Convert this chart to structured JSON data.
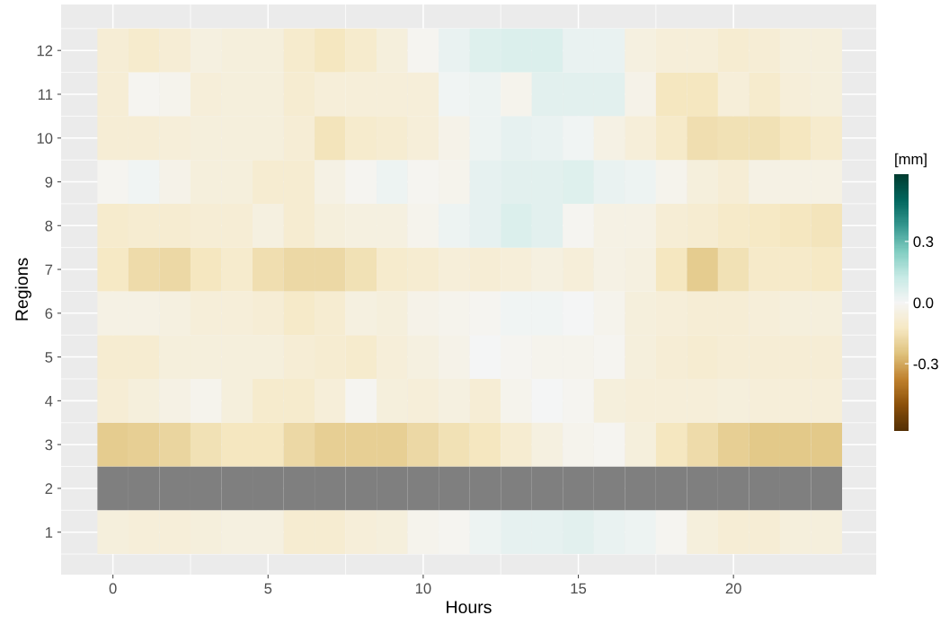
{
  "chart_data": {
    "type": "heatmap",
    "xlabel": "Hours",
    "ylabel": "Regions",
    "clabel": "[mm]",
    "categories": [
      "0",
      null,
      null,
      null,
      null,
      "5",
      null,
      null,
      null,
      null,
      "10",
      null,
      null,
      null,
      null,
      "15",
      null,
      null,
      null,
      null,
      "20",
      null,
      null,
      null
    ],
    "y_categories": [
      "12",
      "11",
      "10",
      "9",
      "8",
      "7",
      "6",
      "5",
      "4",
      "3",
      "2",
      "1"
    ],
    "cells": [
      [
        -0.08,
        -0.1,
        -0.08,
        -0.05,
        -0.06,
        -0.06,
        -0.1,
        -0.13,
        -0.1,
        -0.06,
        -0.01,
        0.03,
        0.06,
        0.07,
        0.07,
        0.03,
        0.03,
        -0.05,
        -0.07,
        -0.07,
        -0.09,
        -0.08,
        -0.06,
        -0.06
      ],
      [
        -0.08,
        -0.01,
        -0.02,
        -0.07,
        -0.06,
        -0.06,
        -0.09,
        -0.07,
        -0.07,
        -0.07,
        -0.07,
        0.01,
        0.02,
        -0.02,
        0.05,
        0.05,
        0.05,
        -0.03,
        -0.13,
        -0.13,
        -0.07,
        -0.1,
        -0.07,
        -0.06
      ],
      [
        -0.08,
        -0.08,
        -0.07,
        -0.06,
        -0.06,
        -0.06,
        -0.08,
        -0.14,
        -0.1,
        -0.09,
        -0.07,
        -0.03,
        0.02,
        0.04,
        0.03,
        0.01,
        -0.04,
        -0.07,
        -0.11,
        -0.16,
        -0.15,
        -0.15,
        -0.13,
        -0.1
      ],
      [
        -0.01,
        0.01,
        -0.03,
        -0.06,
        -0.06,
        -0.09,
        -0.09,
        -0.04,
        -0.01,
        0.02,
        -0.01,
        -0.02,
        0.04,
        0.05,
        0.05,
        0.06,
        0.03,
        0.02,
        -0.02,
        -0.06,
        -0.08,
        -0.04,
        -0.04,
        -0.04
      ],
      [
        -0.1,
        -0.09,
        -0.09,
        -0.08,
        -0.08,
        -0.05,
        -0.09,
        -0.06,
        -0.05,
        -0.05,
        -0.02,
        0.02,
        0.04,
        0.07,
        0.05,
        -0.01,
        -0.04,
        -0.04,
        -0.08,
        -0.09,
        -0.11,
        -0.12,
        -0.13,
        -0.14
      ],
      [
        -0.12,
        -0.17,
        -0.18,
        -0.13,
        -0.1,
        -0.16,
        -0.18,
        -0.18,
        -0.15,
        -0.1,
        -0.09,
        -0.07,
        -0.08,
        -0.07,
        -0.05,
        -0.07,
        -0.04,
        -0.05,
        -0.13,
        -0.22,
        -0.15,
        -0.11,
        -0.11,
        -0.12
      ],
      [
        -0.04,
        -0.04,
        -0.05,
        -0.07,
        -0.07,
        -0.08,
        -0.11,
        -0.09,
        -0.05,
        -0.06,
        -0.03,
        -0.02,
        -0.01,
        0.01,
        0.01,
        0.0,
        -0.02,
        -0.06,
        -0.07,
        -0.08,
        -0.08,
        -0.07,
        -0.06,
        -0.06
      ],
      [
        -0.09,
        -0.09,
        -0.06,
        -0.06,
        -0.06,
        -0.06,
        -0.08,
        -0.09,
        -0.1,
        -0.07,
        -0.05,
        -0.03,
        0.0,
        -0.01,
        -0.02,
        -0.02,
        -0.01,
        -0.06,
        -0.08,
        -0.09,
        -0.08,
        -0.08,
        -0.08,
        -0.08
      ],
      [
        -0.08,
        -0.06,
        -0.04,
        -0.02,
        -0.06,
        -0.1,
        -0.1,
        -0.07,
        -0.01,
        -0.06,
        -0.07,
        -0.05,
        -0.08,
        -0.02,
        0.0,
        -0.01,
        -0.06,
        -0.07,
        -0.07,
        -0.07,
        -0.06,
        -0.07,
        -0.07,
        -0.07
      ],
      [
        -0.22,
        -0.21,
        -0.19,
        -0.15,
        -0.13,
        -0.13,
        -0.18,
        -0.21,
        -0.21,
        -0.21,
        -0.18,
        -0.15,
        -0.13,
        -0.09,
        -0.05,
        -0.02,
        -0.01,
        -0.06,
        -0.13,
        -0.17,
        -0.21,
        -0.23,
        -0.23,
        -0.23
      ],
      [
        null,
        null,
        null,
        null,
        null,
        null,
        null,
        null,
        null,
        null,
        null,
        null,
        null,
        null,
        null,
        null,
        null,
        null,
        null,
        null,
        null,
        null,
        null,
        null
      ],
      [
        -0.06,
        -0.07,
        -0.07,
        -0.06,
        -0.05,
        -0.05,
        -0.09,
        -0.09,
        -0.07,
        -0.06,
        -0.02,
        -0.01,
        0.02,
        0.04,
        0.04,
        0.05,
        0.03,
        0.02,
        -0.01,
        -0.06,
        -0.08,
        -0.08,
        -0.06,
        -0.06
      ]
    ],
    "clim": [
      -0.63,
      0.63
    ],
    "cticks": [
      -0.3,
      {
        "value": 0,
        "label": "0.0"
      },
      0.3
    ],
    "grid": true
  }
}
